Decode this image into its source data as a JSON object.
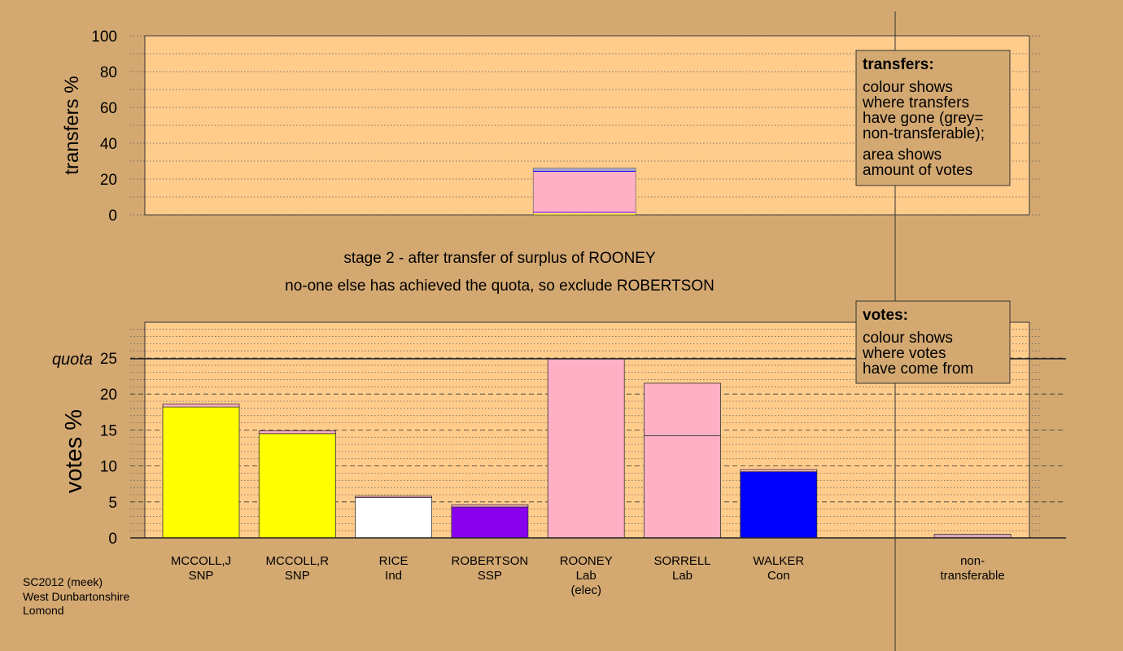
{
  "colors": {
    "page_bg": "#d4a971",
    "plot_bg": "#ffcc8c",
    "grid": "#555555",
    "legend_bg": "#d4a971"
  },
  "texts": {
    "stage_title": "stage 2 - after transfer of surplus of ROONEY",
    "stage_subtitle": "no-one else has achieved the quota, so exclude ROBERTSON",
    "footer": [
      "SC2012 (meek)",
      "West Dunbartonshire",
      "Lomond"
    ]
  },
  "legends": {
    "transfers": {
      "title": "transfers:",
      "lines": [
        "colour shows",
        "where transfers",
        "have gone (grey=",
        "non-transferable);"
      ],
      "lines2": [
        "area shows",
        "amount of votes"
      ]
    },
    "votes": {
      "title": "votes:",
      "lines": [
        "colour shows",
        "where votes",
        "have come from"
      ]
    }
  },
  "chart_data": [
    {
      "type": "bar",
      "id": "transfers",
      "ylabel": "transfers %",
      "ylim": [
        0,
        100
      ],
      "yticks": [
        0,
        20,
        40,
        60,
        80,
        100
      ],
      "grid": true,
      "legend": "top-right",
      "source_candidate": "ROONEY",
      "segments": [
        {
          "to": "MCCOLL,J",
          "color": "#ffff00",
          "value": 0.4
        },
        {
          "to": "MCCOLL,R",
          "color": "#ffff00",
          "value": 0.4
        },
        {
          "to": "RICE",
          "color": "#ffffff",
          "value": 0.3
        },
        {
          "to": "ROBERTSON",
          "color": "#8800ee",
          "value": 0.6
        },
        {
          "to": "SORRELL",
          "color": "#ffb0c4",
          "value": 22.4
        },
        {
          "to": "WALKER",
          "color": "#0000ff",
          "value": 0.5
        },
        {
          "to": "non-transferable",
          "color": "#a8a8c8",
          "value": 1.5
        }
      ]
    },
    {
      "type": "bar",
      "id": "votes",
      "ylabel": "votes %",
      "ylim": [
        0,
        25
      ],
      "yticks": [
        0,
        5,
        10,
        15,
        20,
        25
      ],
      "quota": 24.9,
      "quota_label": "quota",
      "grid": true,
      "legend": "top-right",
      "candidates": [
        {
          "name": "MCCOLL,J",
          "party": "SNP",
          "note": "",
          "color": "#ffff00",
          "segments": [
            {
              "value": 18.2,
              "color": "#ffff00"
            },
            {
              "value": 0.4,
              "color": "#ffb0c4"
            }
          ]
        },
        {
          "name": "MCCOLL,R",
          "party": "SNP",
          "note": "",
          "color": "#ffff00",
          "segments": [
            {
              "value": 14.5,
              "color": "#ffff00"
            },
            {
              "value": 0.4,
              "color": "#ffb0c4"
            }
          ]
        },
        {
          "name": "RICE",
          "party": "Ind",
          "note": "",
          "color": "#ffffff",
          "segments": [
            {
              "value": 5.6,
              "color": "#ffffff"
            },
            {
              "value": 0.2,
              "color": "#ffb0c4"
            }
          ]
        },
        {
          "name": "ROBERTSON",
          "party": "SSP",
          "note": "",
          "color": "#8800ee",
          "segments": [
            {
              "value": 4.3,
              "color": "#8800ee"
            },
            {
              "value": 0.3,
              "color": "#ffb0c4"
            }
          ]
        },
        {
          "name": "ROONEY",
          "party": "Lab",
          "note": "(elec)",
          "color": "#ffb0c4",
          "segments": [
            {
              "value": 24.9,
              "color": "#ffb0c4"
            }
          ]
        },
        {
          "name": "SORRELL",
          "party": "Lab",
          "note": "",
          "color": "#ffb0c4",
          "segments": [
            {
              "value": 14.2,
              "color": "#ffb0c4"
            },
            {
              "value": 7.3,
              "color": "#ffb0c4"
            }
          ]
        },
        {
          "name": "WALKER",
          "party": "Con",
          "note": "",
          "color": "#0000ff",
          "segments": [
            {
              "value": 9.2,
              "color": "#0000ff"
            },
            {
              "value": 0.3,
              "color": "#ffb0c4"
            }
          ]
        },
        {
          "name": "non-",
          "party": "transferable",
          "note": "",
          "color": "#d8a8b8",
          "segments": [
            {
              "value": 0.5,
              "color": "#d8a8b8"
            }
          ]
        }
      ]
    }
  ]
}
